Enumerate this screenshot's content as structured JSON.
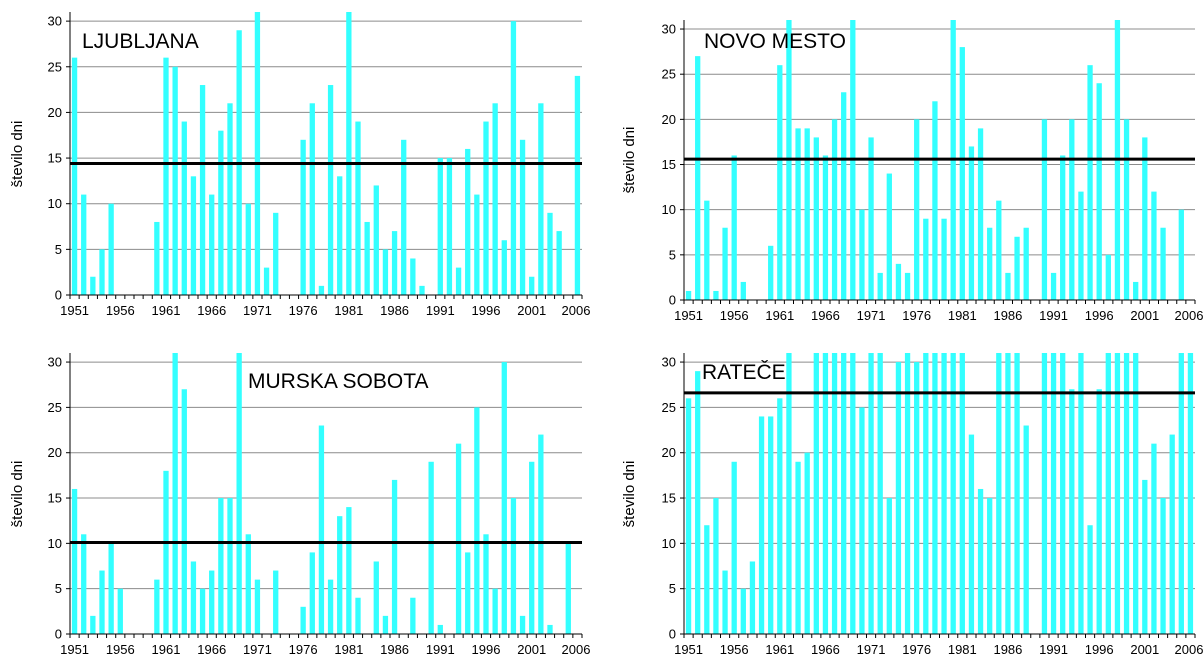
{
  "chart_data": [
    {
      "type": "bar",
      "title": "LJUBLJANA",
      "ylabel": "število dni",
      "ylim": [
        0,
        31
      ],
      "yticks": [
        0,
        5,
        10,
        15,
        20,
        25,
        30
      ],
      "xticks": [
        1951,
        1956,
        1961,
        1966,
        1971,
        1976,
        1981,
        1986,
        1991,
        1996,
        2001,
        2006
      ],
      "bar_color": "#33ffff",
      "x": [
        1951,
        1952,
        1953,
        1954,
        1955,
        1956,
        1957,
        1958,
        1959,
        1960,
        1961,
        1962,
        1963,
        1964,
        1965,
        1966,
        1967,
        1968,
        1969,
        1970,
        1971,
        1972,
        1973,
        1974,
        1975,
        1976,
        1977,
        1978,
        1979,
        1980,
        1981,
        1982,
        1983,
        1984,
        1985,
        1986,
        1987,
        1988,
        1989,
        1990,
        1991,
        1992,
        1993,
        1994,
        1995,
        1996,
        1997,
        1998,
        1999,
        2000,
        2001,
        2002,
        2003,
        2004,
        2005,
        2006
      ],
      "values": [
        26,
        11,
        2,
        5,
        10,
        0,
        0,
        0,
        0,
        8,
        26,
        25,
        19,
        13,
        23,
        11,
        18,
        21,
        29,
        10,
        31,
        3,
        9,
        0,
        0,
        17,
        21,
        1,
        23,
        13,
        31,
        19,
        8,
        12,
        5,
        7,
        17,
        4,
        1,
        0,
        15,
        15,
        3,
        16,
        11,
        19,
        21,
        6,
        30,
        17,
        2,
        21,
        9,
        7,
        0,
        24
      ],
      "reference_line": 14.4
    },
    {
      "type": "bar",
      "title": "NOVO MESTO",
      "ylabel": "število dni",
      "ylim": [
        0,
        31
      ],
      "yticks": [
        0,
        5,
        10,
        15,
        20,
        25,
        30
      ],
      "xticks": [
        1951,
        1956,
        1961,
        1966,
        1971,
        1976,
        1981,
        1986,
        1991,
        1996,
        2001,
        2006
      ],
      "bar_color": "#33ffff",
      "x": [
        1951,
        1952,
        1953,
        1954,
        1955,
        1956,
        1957,
        1958,
        1959,
        1960,
        1961,
        1962,
        1963,
        1964,
        1965,
        1966,
        1967,
        1968,
        1969,
        1970,
        1971,
        1972,
        1973,
        1974,
        1975,
        1976,
        1977,
        1978,
        1979,
        1980,
        1981,
        1982,
        1983,
        1984,
        1985,
        1986,
        1987,
        1988,
        1989,
        1990,
        1991,
        1992,
        1993,
        1994,
        1995,
        1996,
        1997,
        1998,
        1999,
        2000,
        2001,
        2002,
        2003,
        2004,
        2005,
        2006
      ],
      "values": [
        1,
        27,
        11,
        1,
        8,
        16,
        2,
        0,
        0,
        6,
        26,
        31,
        19,
        19,
        18,
        16,
        20,
        23,
        31,
        10,
        18,
        3,
        14,
        4,
        3,
        20,
        9,
        22,
        9,
        31,
        28,
        17,
        19,
        8,
        11,
        3,
        7,
        8,
        0,
        20,
        3,
        16,
        20,
        12,
        26,
        24,
        5,
        31,
        20,
        2,
        18,
        12,
        8,
        0,
        10,
        0
      ],
      "reference_line": 15.6
    },
    {
      "type": "bar",
      "title": "MURSKA SOBOTA",
      "ylabel": "število dni",
      "ylim": [
        0,
        31
      ],
      "yticks": [
        0,
        5,
        10,
        15,
        20,
        25,
        30
      ],
      "xticks": [
        1951,
        1956,
        1961,
        1966,
        1971,
        1976,
        1981,
        1986,
        1991,
        1996,
        2001,
        2006
      ],
      "bar_color": "#33ffff",
      "x": [
        1951,
        1952,
        1953,
        1954,
        1955,
        1956,
        1957,
        1958,
        1959,
        1960,
        1961,
        1962,
        1963,
        1964,
        1965,
        1966,
        1967,
        1968,
        1969,
        1970,
        1971,
        1972,
        1973,
        1974,
        1975,
        1976,
        1977,
        1978,
        1979,
        1980,
        1981,
        1982,
        1983,
        1984,
        1985,
        1986,
        1987,
        1988,
        1989,
        1990,
        1991,
        1992,
        1993,
        1994,
        1995,
        1996,
        1997,
        1998,
        1999,
        2000,
        2001,
        2002,
        2003,
        2004,
        2005,
        2006
      ],
      "values": [
        16,
        11,
        2,
        7,
        10,
        5,
        0,
        0,
        0,
        6,
        18,
        31,
        27,
        8,
        5,
        7,
        15,
        15,
        31,
        11,
        6,
        0,
        7,
        0,
        0,
        3,
        9,
        23,
        6,
        13,
        14,
        4,
        0,
        8,
        2,
        17,
        0,
        4,
        0,
        19,
        1,
        0,
        21,
        9,
        25,
        11,
        5,
        30,
        15,
        2,
        19,
        22,
        1,
        0,
        10,
        0
      ],
      "reference_line": 10.1
    },
    {
      "type": "bar",
      "title": "RATEČE",
      "ylabel": "število dni",
      "ylim": [
        0,
        31
      ],
      "yticks": [
        0,
        5,
        10,
        15,
        20,
        25,
        30
      ],
      "xticks": [
        1951,
        1956,
        1961,
        1966,
        1971,
        1976,
        1981,
        1986,
        1991,
        1996,
        2001,
        2006
      ],
      "bar_color": "#33ffff",
      "x": [
        1951,
        1952,
        1953,
        1954,
        1955,
        1956,
        1957,
        1958,
        1959,
        1960,
        1961,
        1962,
        1963,
        1964,
        1965,
        1966,
        1967,
        1968,
        1969,
        1970,
        1971,
        1972,
        1973,
        1974,
        1975,
        1976,
        1977,
        1978,
        1979,
        1980,
        1981,
        1982,
        1983,
        1984,
        1985,
        1986,
        1987,
        1988,
        1989,
        1990,
        1991,
        1992,
        1993,
        1994,
        1995,
        1996,
        1997,
        1998,
        1999,
        2000,
        2001,
        2002,
        2003,
        2004,
        2005,
        2006
      ],
      "values": [
        26,
        29,
        12,
        15,
        7,
        19,
        5,
        8,
        24,
        24,
        26,
        31,
        19,
        20,
        31,
        31,
        31,
        31,
        31,
        25,
        31,
        31,
        15,
        30,
        31,
        30,
        31,
        31,
        31,
        31,
        31,
        22,
        16,
        15,
        31,
        31,
        31,
        23,
        0,
        31,
        31,
        31,
        27,
        31,
        12,
        27,
        31,
        31,
        31,
        31,
        17,
        21,
        15,
        22,
        31,
        31
      ],
      "reference_line": 26.6
    }
  ]
}
